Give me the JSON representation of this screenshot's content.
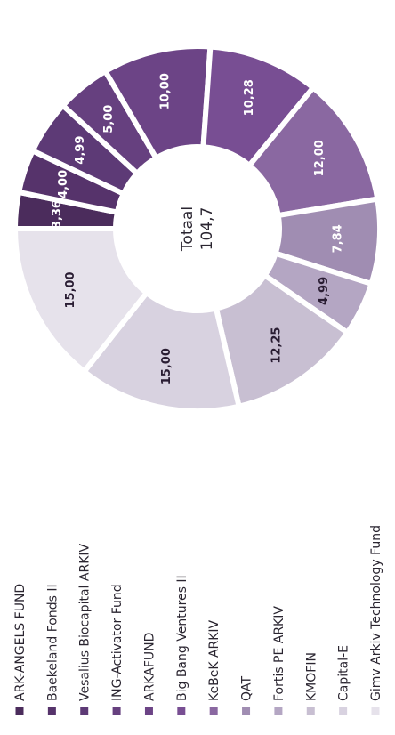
{
  "chart_data": {
    "type": "donut",
    "categories": [
      "ARK-ANGELS FUND",
      "Baekeland Fonds II",
      "Vesalius Biocapital ARKIV",
      "ING-Activator Fund",
      "ARKAFUND",
      "Big Bang Ventures II",
      "KeBeK ARKIV",
      "QAT",
      "Fortis PE ARKIV",
      "KMOFIN",
      "Capital-E",
      "Gimv Arkiv Technology Fund"
    ],
    "values": [
      3.36,
      4.0,
      4.99,
      5.0,
      10.0,
      10.28,
      12.0,
      7.84,
      4.99,
      12.25,
      15.0,
      15.0
    ],
    "value_labels": [
      "3,36",
      "4,00",
      "4,99",
      "5,00",
      "10,00",
      "10,28",
      "12,00",
      "7,84",
      "4,99",
      "12,25",
      "15,00",
      "15,00"
    ],
    "colors": [
      "#4b2c5c",
      "#56336b",
      "#5d3a76",
      "#66407f",
      "#6c4486",
      "#784e93",
      "#8a68a1",
      "#a08db2",
      "#b4a6c3",
      "#c8bfd2",
      "#d8d2e0",
      "#e6e2eb"
    ],
    "label_colors": [
      "#ffffff",
      "#ffffff",
      "#ffffff",
      "#ffffff",
      "#ffffff",
      "#ffffff",
      "#ffffff",
      "#ffffff",
      "#2a1d33",
      "#2a1d33",
      "#2a1d33",
      "#2a1d33"
    ],
    "center_text": [
      "Totaal",
      "104,7"
    ]
  }
}
